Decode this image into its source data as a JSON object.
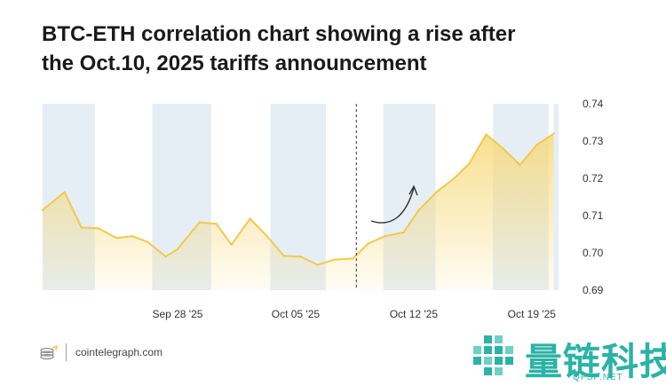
{
  "title_lines": [
    "BTC-ETH correlation chart showing a rise after",
    "the Oct.10, 2025 tariffs announcement"
  ],
  "footer": {
    "site": "cointelegraph.com"
  },
  "watermark": {
    "text": "量链科技",
    "sub": "QFSP.NET"
  },
  "colors": {
    "line": "#f2c94c",
    "fill_top": "#f7d97a",
    "band": "#e6eef5",
    "axis_text": "#333333",
    "watermark": "#2bb3a5"
  },
  "chart_data": {
    "type": "area",
    "title": "BTC-ETH correlation chart showing a rise after the Oct.10, 2025 tariffs announcement",
    "xlabel": "",
    "ylabel": "",
    "x_start": "2025-09-20",
    "x_end": "2025-10-24",
    "x_ticks": [
      {
        "label": "Sep 28 '25",
        "day": 8
      },
      {
        "label": "Oct 05 '25",
        "day": 15
      },
      {
        "label": "Oct 12 '25",
        "day": 22
      },
      {
        "label": "Oct 19 '25",
        "day": 29
      }
    ],
    "ylim": [
      0.69,
      0.74
    ],
    "y_ticks": [
      0.69,
      0.7,
      0.71,
      0.72,
      0.73,
      0.74
    ],
    "y_axis_side": "right",
    "grid": false,
    "shaded_bands_days": [
      [
        0,
        3.1
      ],
      [
        6.5,
        10
      ],
      [
        13.5,
        16.8
      ],
      [
        20.2,
        23.3
      ],
      [
        26.7,
        30
      ],
      [
        30.3,
        30.6
      ]
    ],
    "event_marker": {
      "label": "Oct 10, 2025 tariffs announcement",
      "day": 18.6,
      "style": "dashed vertical line"
    },
    "annotation": "curved arrow pointing up",
    "series": [
      {
        "name": "BTC-ETH correlation",
        "x_days": [
          0,
          1.3,
          2.3,
          3.3,
          4.4,
          5.3,
          6.2,
          7.3,
          8.0,
          9.3,
          10.3,
          11.2,
          12.3,
          13.3,
          14.3,
          15.3,
          16.3,
          17.3,
          18.4,
          19.3,
          20.3,
          21.4,
          22.3,
          23.4,
          24.4,
          25.3,
          26.3,
          27.3,
          28.3,
          29.3,
          30.3
        ],
        "values": [
          0.7115,
          0.7163,
          0.7068,
          0.7066,
          0.704,
          0.7045,
          0.703,
          0.699,
          0.701,
          0.7082,
          0.7078,
          0.7022,
          0.7092,
          0.7045,
          0.6992,
          0.699,
          0.6968,
          0.6982,
          0.6985,
          0.7025,
          0.7045,
          0.7055,
          0.7115,
          0.7165,
          0.72,
          0.724,
          0.7318,
          0.728,
          0.7236,
          0.729,
          0.732
        ]
      }
    ]
  }
}
